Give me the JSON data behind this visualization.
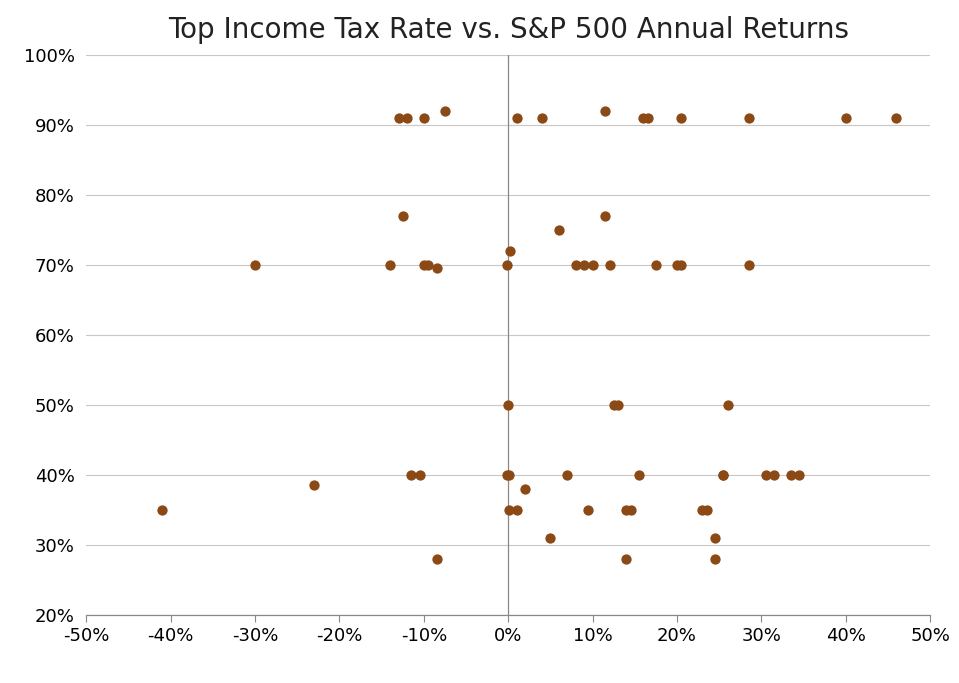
{
  "title": "Top Income Tax Rate vs. S&P 500 Annual Returns",
  "xlim": [
    -0.5,
    0.5
  ],
  "ylim": [
    0.2,
    1.0
  ],
  "xticks": [
    -0.5,
    -0.4,
    -0.3,
    -0.2,
    -0.1,
    0.0,
    0.1,
    0.2,
    0.3,
    0.4,
    0.5
  ],
  "yticks": [
    0.2,
    0.3,
    0.4,
    0.5,
    0.6,
    0.7,
    0.8,
    0.9,
    1.0
  ],
  "dot_color": "#8B4A15",
  "dot_size": 55,
  "background_color": "#ffffff",
  "title_fontsize": 20,
  "tick_fontsize": 13,
  "points": [
    [
      -0.41,
      0.35
    ],
    [
      -0.3,
      0.7
    ],
    [
      -0.23,
      0.385
    ],
    [
      -0.14,
      0.7
    ],
    [
      -0.125,
      0.77
    ],
    [
      -0.115,
      0.4
    ],
    [
      -0.1,
      0.7
    ],
    [
      -0.095,
      0.7
    ],
    [
      -0.085,
      0.695
    ],
    [
      -0.105,
      0.4
    ],
    [
      -0.13,
      0.91
    ],
    [
      -0.12,
      0.91
    ],
    [
      -0.075,
      0.92
    ],
    [
      -0.1,
      0.91
    ],
    [
      -0.085,
      0.28
    ],
    [
      0.002,
      0.72
    ],
    [
      -0.001,
      0.7
    ],
    [
      -0.002,
      0.4
    ],
    [
      0.001,
      0.4
    ],
    [
      0.0,
      0.5
    ],
    [
      0.001,
      0.35
    ],
    [
      0.01,
      0.91
    ],
    [
      0.01,
      0.35
    ],
    [
      0.02,
      0.38
    ],
    [
      0.04,
      0.91
    ],
    [
      0.05,
      0.31
    ],
    [
      0.06,
      0.75
    ],
    [
      0.07,
      0.4
    ],
    [
      0.08,
      0.7
    ],
    [
      0.09,
      0.7
    ],
    [
      0.1,
      0.7
    ],
    [
      0.095,
      0.35
    ],
    [
      0.115,
      0.92
    ],
    [
      0.115,
      0.77
    ],
    [
      0.12,
      0.7
    ],
    [
      0.125,
      0.5
    ],
    [
      0.13,
      0.5
    ],
    [
      0.14,
      0.35
    ],
    [
      0.145,
      0.35
    ],
    [
      0.14,
      0.28
    ],
    [
      0.155,
      0.4
    ],
    [
      0.16,
      0.91
    ],
    [
      0.165,
      0.91
    ],
    [
      0.175,
      0.7
    ],
    [
      0.2,
      0.7
    ],
    [
      0.205,
      0.91
    ],
    [
      0.205,
      0.7
    ],
    [
      0.23,
      0.35
    ],
    [
      0.235,
      0.35
    ],
    [
      0.245,
      0.31
    ],
    [
      0.245,
      0.28
    ],
    [
      0.255,
      0.4
    ],
    [
      0.255,
      0.4
    ],
    [
      0.26,
      0.5
    ],
    [
      0.285,
      0.91
    ],
    [
      0.285,
      0.7
    ],
    [
      0.305,
      0.4
    ],
    [
      0.315,
      0.4
    ],
    [
      0.335,
      0.4
    ],
    [
      0.345,
      0.4
    ],
    [
      0.4,
      0.91
    ],
    [
      0.46,
      0.91
    ]
  ]
}
